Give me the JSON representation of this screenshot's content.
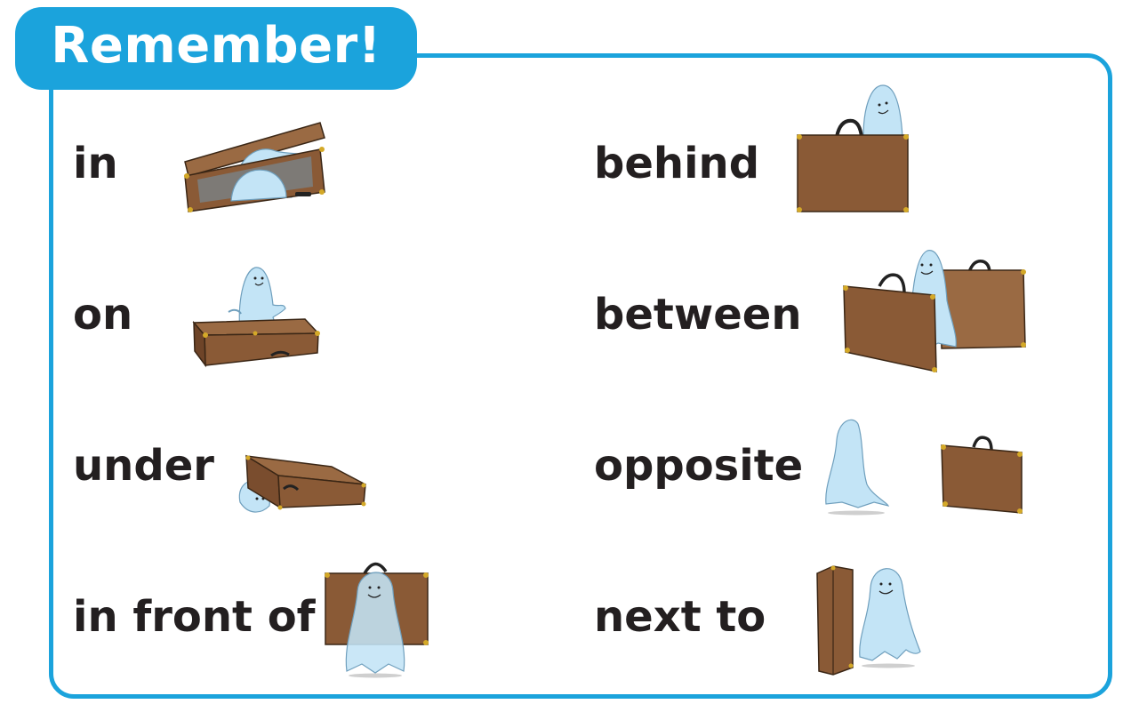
{
  "title": "Remember!",
  "prepositions": [
    {
      "label": "in"
    },
    {
      "label": "on"
    },
    {
      "label": "under"
    },
    {
      "label": "in front of"
    },
    {
      "label": "behind"
    },
    {
      "label": "between"
    },
    {
      "label": "opposite"
    },
    {
      "label": "next to"
    }
  ],
  "colors": {
    "accent": "#1ba3dc",
    "suitcase": "#8a5a36",
    "ghost": "#c3e4f6",
    "text": "#231f20"
  }
}
